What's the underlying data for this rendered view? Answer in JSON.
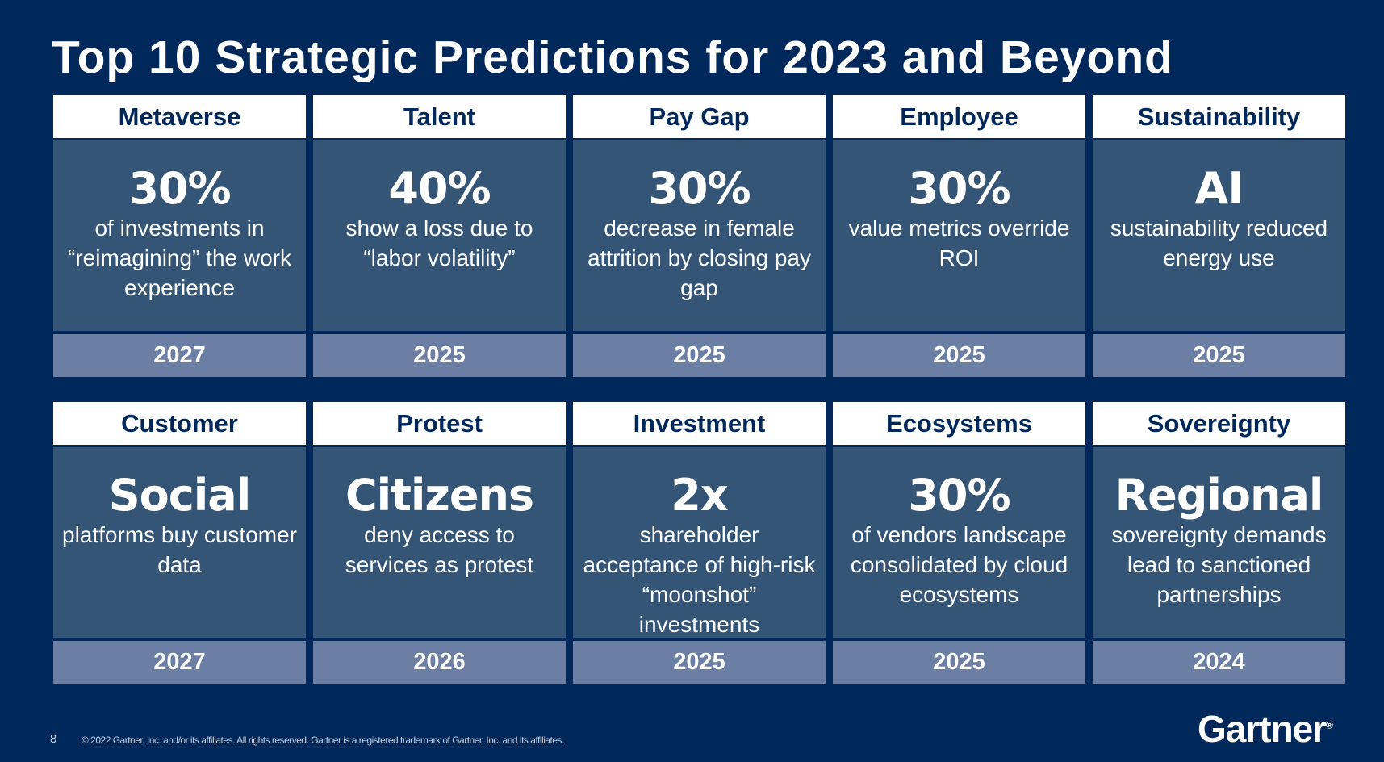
{
  "title": "Top 10 Strategic Predictions for 2023 and Beyond",
  "cards": [
    {
      "category": "Metaverse",
      "headline": "30%",
      "description": "of investments in “reimagining” the work experience",
      "year": "2027"
    },
    {
      "category": "Talent",
      "headline": "40%",
      "description": "show a loss due to “labor volatility”",
      "year": "2025"
    },
    {
      "category": "Pay Gap",
      "headline": "30%",
      "description": "decrease in female attrition by closing pay gap",
      "year": "2025"
    },
    {
      "category": "Employee",
      "headline": "30%",
      "description": "value metrics override ROI",
      "year": "2025"
    },
    {
      "category": "Sustainability",
      "headline": "AI",
      "description": "sustainability reduced energy use",
      "year": "2025"
    },
    {
      "category": "Customer",
      "headline": "Social",
      "description": "platforms buy customer data",
      "year": "2027"
    },
    {
      "category": "Protest",
      "headline": "Citizens",
      "description": "deny access to services as protest",
      "year": "2026"
    },
    {
      "category": "Investment",
      "headline": "2x",
      "description": "shareholder acceptance of high-risk “moonshot” investments",
      "year": "2025"
    },
    {
      "category": "Ecosystems",
      "headline": "30%",
      "description": "of vendors landscape consolidated by cloud ecosystems",
      "year": "2025"
    },
    {
      "category": "Sovereignty",
      "headline": "Regional",
      "description": "sovereignty demands lead to sanctioned partnerships",
      "year": "2024"
    }
  ],
  "footer": {
    "page_number": "8",
    "copyright": "© 2022 Gartner, Inc. and/or its affiliates. All rights reserved. Gartner is a registered trademark of Gartner, Inc. and its affiliates.",
    "logo": "Gartner"
  },
  "colors": {
    "background": "#00285a",
    "card_body": "#355577",
    "year_band": "#6a7fa3",
    "header": "#ffffff"
  }
}
